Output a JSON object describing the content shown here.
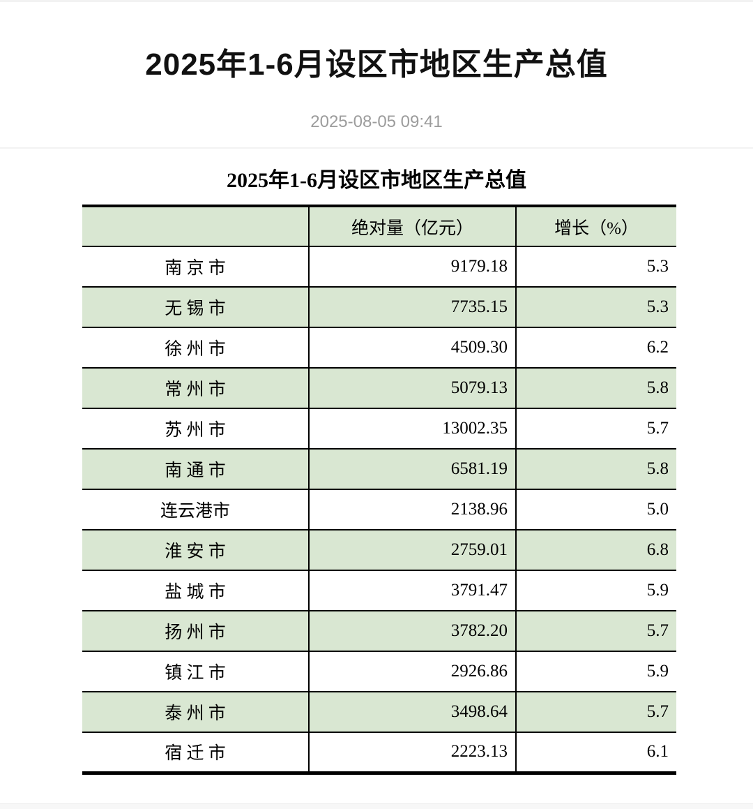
{
  "article": {
    "title": "2025年1-6月设区市地区生产总值",
    "timestamp": "2025-08-05 09:41"
  },
  "table": {
    "title": "2025年1-6月设区市地区生产总值",
    "columns": [
      "",
      "绝对量（亿元）",
      "增长（%）"
    ],
    "rows": [
      {
        "city": "南 京 市",
        "value": "9179.18",
        "growth": "5.3"
      },
      {
        "city": "无 锡 市",
        "value": "7735.15",
        "growth": "5.3"
      },
      {
        "city": "徐 州 市",
        "value": "4509.30",
        "growth": "6.2"
      },
      {
        "city": "常 州 市",
        "value": "5079.13",
        "growth": "5.8"
      },
      {
        "city": "苏 州 市",
        "value": "13002.35",
        "growth": "5.7"
      },
      {
        "city": "南 通 市",
        "value": "6581.19",
        "growth": "5.8"
      },
      {
        "city": "连云港市",
        "value": "2138.96",
        "growth": "5.0"
      },
      {
        "city": "淮 安 市",
        "value": "2759.01",
        "growth": "6.8"
      },
      {
        "city": "盐 城 市",
        "value": "3791.47",
        "growth": "5.9"
      },
      {
        "city": "扬 州 市",
        "value": "3782.20",
        "growth": "5.7"
      },
      {
        "city": "镇 江 市",
        "value": "2926.86",
        "growth": "5.9"
      },
      {
        "city": "泰 州 市",
        "value": "3498.64",
        "growth": "5.7"
      },
      {
        "city": "宿 迁 市",
        "value": "2223.13",
        "growth": "6.1"
      }
    ]
  },
  "colors": {
    "row_highlight_green": "#d9e7d2",
    "table_border_black": "#000000",
    "timestamp_gray": "#9c9c9c",
    "divider_gray": "#f2f2f2"
  }
}
